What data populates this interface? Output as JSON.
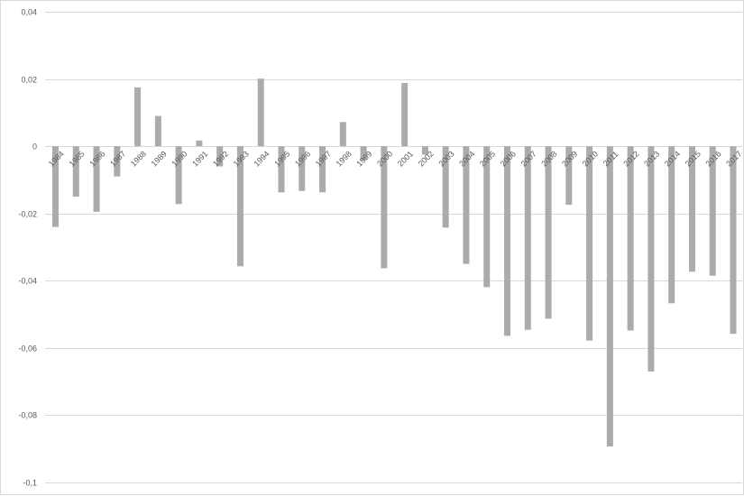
{
  "chart_data": {
    "type": "bar",
    "title": "",
    "xlabel": "",
    "ylabel": "",
    "ylim": [
      -0.1,
      0.04
    ],
    "yticks": [
      0.04,
      0.02,
      0,
      -0.02,
      -0.04,
      -0.06,
      -0.08,
      -0.1
    ],
    "ytick_labels": [
      "0,04",
      "0,02",
      "0",
      "-0,02",
      "-0,04",
      "-0,06",
      "-0,08",
      "-0,1"
    ],
    "grid": true,
    "bar_color": "#aeaaaa",
    "categories": [
      "1984",
      "1985",
      "1986",
      "1987",
      "1988",
      "1989",
      "1990",
      "1991",
      "1992",
      "1993",
      "1994",
      "1995",
      "1996",
      "1997",
      "1998",
      "1999",
      "2000",
      "2001",
      "2002",
      "2003",
      "2004",
      "2005",
      "2006",
      "2007",
      "2008",
      "2009",
      "2010",
      "2011",
      "2012",
      "2013",
      "2014",
      "2015",
      "2016",
      "2017"
    ],
    "values": [
      -0.024,
      -0.015,
      -0.0195,
      -0.009,
      0.0175,
      0.009,
      -0.0172,
      0.0017,
      -0.006,
      -0.0357,
      0.0201,
      -0.0137,
      -0.0133,
      -0.0137,
      0.0072,
      -0.0042,
      -0.0363,
      0.0188,
      -0.0025,
      -0.0242,
      -0.035,
      -0.0419,
      -0.0564,
      -0.0546,
      -0.0513,
      -0.0174,
      -0.0578,
      -0.0893,
      -0.0548,
      -0.067,
      -0.0467,
      -0.0373,
      -0.0385,
      -0.0558
    ]
  }
}
